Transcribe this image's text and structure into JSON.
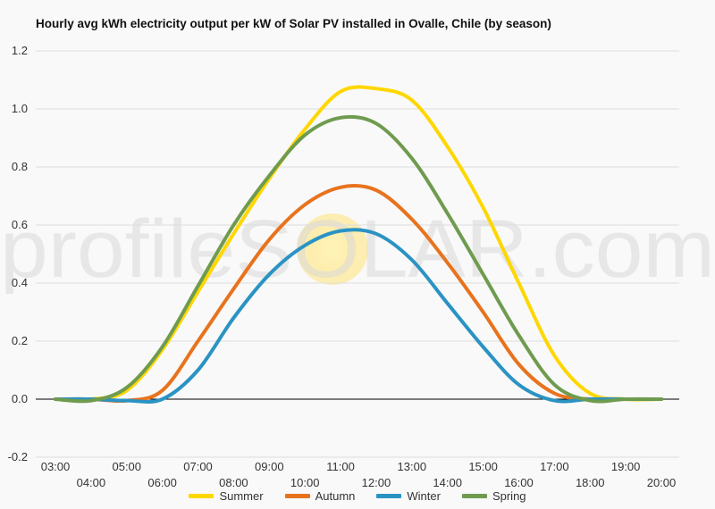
{
  "chart_data": {
    "type": "line",
    "title": "Hourly avg kWh electricity output per kW of Solar PV installed in Ovalle, Chile (by season)",
    "xlabel": "",
    "ylabel": "",
    "ylim": [
      -0.2,
      1.2
    ],
    "yticks": [
      "-0.2",
      "0.0",
      "0.2",
      "0.4",
      "0.6",
      "0.8",
      "1.0",
      "1.2"
    ],
    "grid": true,
    "legend_position": "bottom",
    "watermark": "profileSOLAR.com",
    "categories": [
      "03:00",
      "04:00",
      "05:00",
      "06:00",
      "07:00",
      "08:00",
      "09:00",
      "10:00",
      "11:00",
      "12:00",
      "13:00",
      "14:00",
      "15:00",
      "16:00",
      "17:00",
      "18:00",
      "19:00",
      "20:00"
    ],
    "series": [
      {
        "name": "Summer",
        "color": "#ffd700",
        "values": [
          0.0,
          0.0,
          0.03,
          0.17,
          0.37,
          0.57,
          0.76,
          0.93,
          1.06,
          1.07,
          1.03,
          0.87,
          0.66,
          0.4,
          0.15,
          0.02,
          0.0,
          0.0
        ]
      },
      {
        "name": "Autumn",
        "color": "#e8731e",
        "values": [
          0.0,
          0.0,
          -0.005,
          0.03,
          0.2,
          0.38,
          0.55,
          0.67,
          0.73,
          0.72,
          0.62,
          0.47,
          0.3,
          0.12,
          0.02,
          0.0,
          0.0,
          0.0
        ]
      },
      {
        "name": "Winter",
        "color": "#2a93c3",
        "values": [
          0.0,
          0.0,
          -0.005,
          0.0,
          0.1,
          0.28,
          0.43,
          0.53,
          0.58,
          0.57,
          0.48,
          0.33,
          0.18,
          0.05,
          -0.005,
          0.0,
          0.0,
          0.0
        ]
      },
      {
        "name": "Spring",
        "color": "#6f9b4f",
        "values": [
          0.0,
          -0.005,
          0.04,
          0.18,
          0.39,
          0.6,
          0.77,
          0.91,
          0.97,
          0.95,
          0.83,
          0.64,
          0.43,
          0.22,
          0.05,
          -0.005,
          0.0,
          0.0
        ]
      }
    ]
  }
}
